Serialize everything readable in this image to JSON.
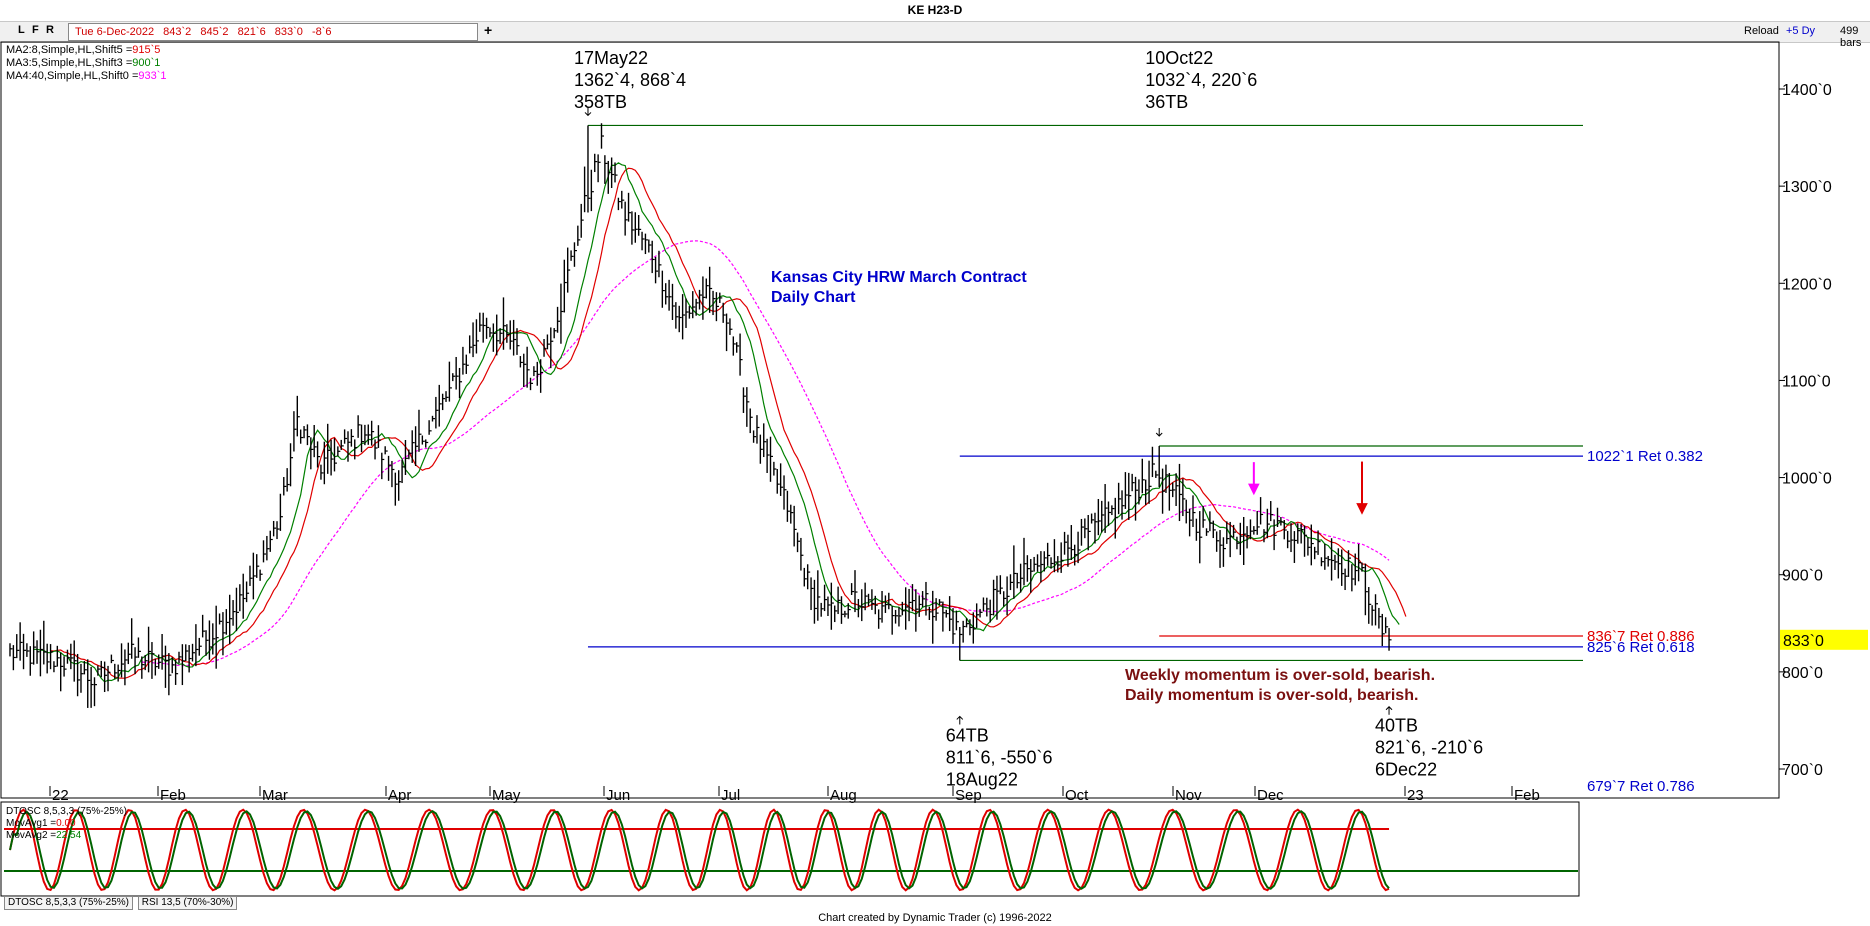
{
  "window": {
    "title": "KE H23-D"
  },
  "toolbar": {
    "buttons": [
      "L",
      "F",
      "R"
    ],
    "quote": [
      "Tue 6-Dec-2022",
      "843`2",
      "845`2",
      "821`6",
      "833`0",
      "-8`6"
    ],
    "add_label": "+",
    "reload_label": "Reload",
    "range_label": "+5 Dy",
    "bars_label": "499 bars"
  },
  "indicators": {
    "ma2": {
      "label": "MA2:8,Simple,HL,Shift5 =",
      "value": "915`5",
      "color": "#e00000"
    },
    "ma3": {
      "label": "MA3:5,Simple,HL,Shift3 =",
      "value": "900`1",
      "color": "#008000"
    },
    "ma4": {
      "label": "MA4:40,Simple,HL,Shift0 =",
      "value": "933`1",
      "color": "#ff00ff"
    }
  },
  "chart_data": {
    "type": "bar",
    "title": "Kansas City HRW March Contract",
    "subtitle": "Daily Chart",
    "ylim": [
      680,
      1440
    ],
    "y_ticks": [
      "1400`0",
      "1300`0",
      "1200`0",
      "1100`0",
      "1000`0",
      "900`0",
      "800`0",
      "700`0"
    ],
    "y_tick_values": [
      1400,
      1300,
      1200,
      1100,
      1000,
      900,
      800,
      700
    ],
    "x_ticks": [
      "22",
      "Feb",
      "Mar",
      "Apr",
      "May",
      "Jun",
      "Jul",
      "Aug",
      "Sep",
      "Oct",
      "Nov",
      "Dec",
      "23",
      "Feb"
    ],
    "last_price": {
      "label": "833`0",
      "value": 833
    },
    "anchors": [
      {
        "day": 0,
        "price": 820
      },
      {
        "day": 15,
        "price": 812
      },
      {
        "day": 25,
        "price": 790
      },
      {
        "day": 35,
        "price": 818
      },
      {
        "day": 48,
        "price": 805
      },
      {
        "day": 60,
        "price": 840
      },
      {
        "day": 70,
        "price": 880
      },
      {
        "day": 80,
        "price": 960
      },
      {
        "day": 85,
        "price": 1060
      },
      {
        "day": 92,
        "price": 1010
      },
      {
        "day": 105,
        "price": 1050
      },
      {
        "day": 115,
        "price": 1000
      },
      {
        "day": 125,
        "price": 1060
      },
      {
        "day": 132,
        "price": 1100
      },
      {
        "day": 140,
        "price": 1160
      },
      {
        "day": 148,
        "price": 1140
      },
      {
        "day": 155,
        "price": 1100
      },
      {
        "day": 163,
        "price": 1180
      },
      {
        "day": 170,
        "price": 1280
      },
      {
        "day": 175,
        "price": 1340
      },
      {
        "day": 182,
        "price": 1270
      },
      {
        "day": 190,
        "price": 1230
      },
      {
        "day": 198,
        "price": 1160
      },
      {
        "day": 205,
        "price": 1190
      },
      {
        "day": 212,
        "price": 1170
      },
      {
        "day": 220,
        "price": 1050
      },
      {
        "day": 230,
        "price": 970
      },
      {
        "day": 237,
        "price": 880
      },
      {
        "day": 243,
        "price": 860
      },
      {
        "day": 250,
        "price": 875
      },
      {
        "day": 258,
        "price": 860
      },
      {
        "day": 268,
        "price": 875
      },
      {
        "day": 275,
        "price": 865
      },
      {
        "day": 281,
        "price": 840
      },
      {
        "day": 290,
        "price": 870
      },
      {
        "day": 300,
        "price": 900
      },
      {
        "day": 312,
        "price": 925
      },
      {
        "day": 322,
        "price": 950
      },
      {
        "day": 332,
        "price": 985
      },
      {
        "day": 339,
        "price": 1005
      },
      {
        "day": 345,
        "price": 980
      },
      {
        "day": 352,
        "price": 950
      },
      {
        "day": 360,
        "price": 935
      },
      {
        "day": 368,
        "price": 955
      },
      {
        "day": 376,
        "price": 950
      },
      {
        "day": 384,
        "price": 935
      },
      {
        "day": 392,
        "price": 915
      },
      {
        "day": 400,
        "price": 900
      },
      {
        "day": 405,
        "price": 850
      },
      {
        "day": 408,
        "price": 828
      }
    ],
    "day_range": [
      0,
      416
    ],
    "ma_periods": {
      "ma2": 8,
      "ma3": 5,
      "ma4": 40
    },
    "ma_shifts": {
      "ma2": 5,
      "ma3": 3,
      "ma4": 0
    },
    "highs_lows": [
      {
        "day": 171,
        "price": 1362.5,
        "dir": "high",
        "lines": [
          "17May22",
          "1362`4, 868`4",
          "358TB"
        ]
      },
      {
        "day": 340,
        "price": 1032.5,
        "dir": "high",
        "lines": [
          "10Oct22",
          "1032`4, 220`6",
          "36TB"
        ]
      },
      {
        "day": 281,
        "price": 811.75,
        "dir": "low",
        "lines": [
          "64TB",
          "811`6, -550`6",
          "18Aug22"
        ]
      },
      {
        "day": 408,
        "price": 821.75,
        "dir": "low",
        "lines": [
          "40TB",
          "821`6, -210`6",
          "6Dec22"
        ]
      }
    ],
    "level_lines": [
      {
        "price": 1362.5,
        "color": "#006400",
        "from_day": 171,
        "to_day": 494
      },
      {
        "price": 1022.1,
        "color": "#0000cc",
        "from_day": 281,
        "to_day": 494,
        "label": "1022`1 Ret 0.382"
      },
      {
        "price": 1032.5,
        "color": "#006400",
        "from_day": 340,
        "to_day": 494
      },
      {
        "price": 836.9,
        "color": "#e00000",
        "from_day": 340,
        "to_day": 494,
        "label": "836`7 Ret 0.886"
      },
      {
        "price": 825.75,
        "color": "#0000cc",
        "from_day": 171,
        "to_day": 494,
        "label": "825`6 Ret 0.618"
      },
      {
        "price": 811.75,
        "color": "#006400",
        "from_day": 281,
        "to_day": 494
      }
    ],
    "cut_label": "679`7 Ret 0.786",
    "momentum_text": [
      "Weekly momentum is over-sold, bearish.",
      "Daily momentum is over-sold, bearish."
    ],
    "arrows": [
      {
        "day": 368,
        "price": 985,
        "color": "#ff00ff"
      },
      {
        "day": 400,
        "price": 965,
        "color": "#e00000"
      }
    ],
    "oscillator": {
      "name": "DTOSC 8,5,3,3 (75%-25%)",
      "movavg1": {
        "label": "MovAvg1 =",
        "value": "0.00"
      },
      "movavg2": {
        "label": "MovAvg2 =",
        "value": "22.54"
      },
      "upper": 75,
      "lower": 25,
      "period_days": 17
    }
  },
  "tabs": [
    "DTOSC 8,5,3,3 (75%-25%)",
    "RSI 13,5 (70%-30%)"
  ],
  "footer": "Chart created by Dynamic Trader  (c) 1996-2022",
  "colors": {
    "red": "#e00000",
    "green": "#008000",
    "magenta": "#ff00ff",
    "blue": "#0000cc",
    "darkgreen": "#006400",
    "brown": "#7a1010",
    "yellow": "#ffff00"
  }
}
